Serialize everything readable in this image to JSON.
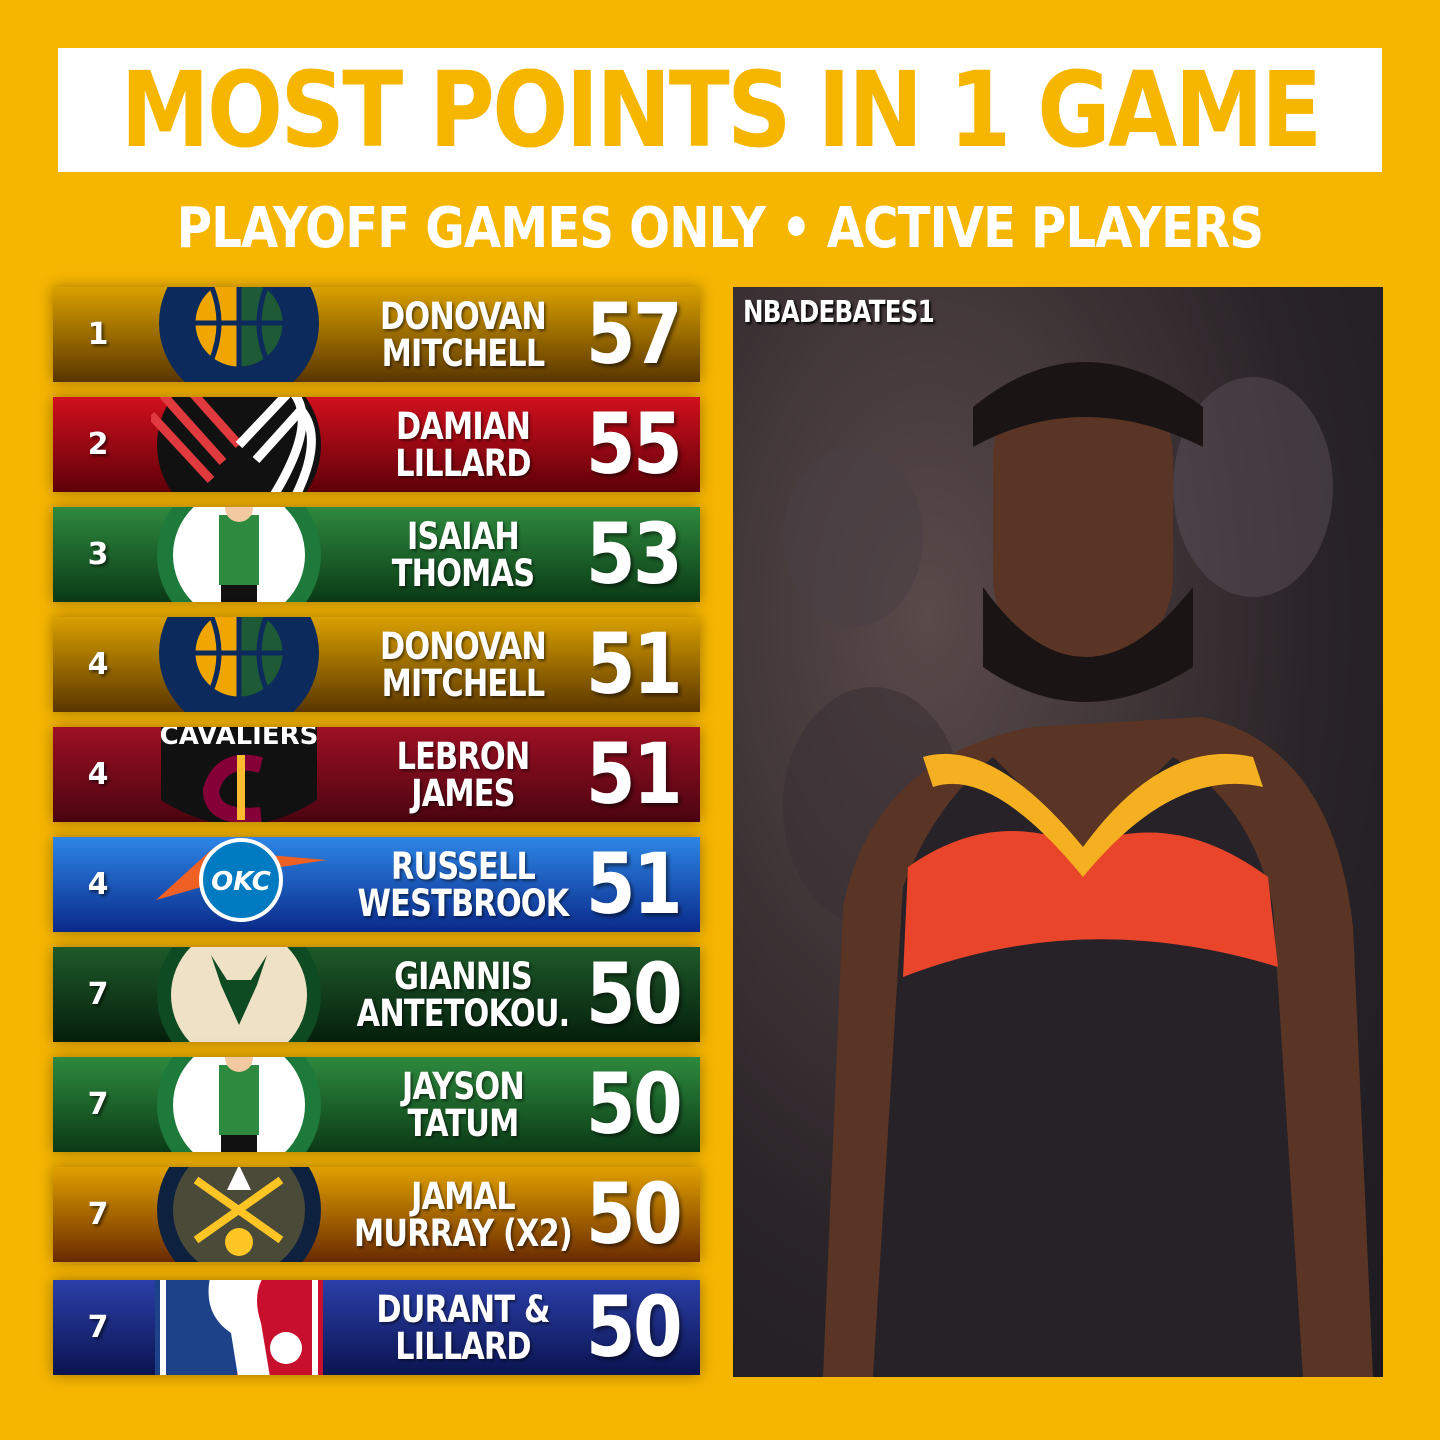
{
  "title": "MOST POINTS IN 1 GAME",
  "subtitle": "PLAYOFF GAMES ONLY • ACTIVE PLAYERS",
  "watermark": "NBADEBATES1",
  "rows": [
    {
      "rank": "1",
      "line1": "DONOVAN",
      "line2": "MITCHELL",
      "points": "57",
      "team": "jazz",
      "colors": [
        "#D9A000",
        "#5a3600"
      ]
    },
    {
      "rank": "2",
      "line1": "DAMIAN",
      "line2": "LILLARD",
      "points": "55",
      "team": "blazers",
      "colors": [
        "#D2101E",
        "#5e0008"
      ]
    },
    {
      "rank": "3",
      "line1": "ISAIAH",
      "line2": "THOMAS",
      "points": "53",
      "team": "celtics",
      "colors": [
        "#2E8A3E",
        "#0b3a16"
      ]
    },
    {
      "rank": "4",
      "line1": "DONOVAN",
      "line2": "MITCHELL",
      "points": "51",
      "team": "jazz",
      "colors": [
        "#D9A000",
        "#5a3600"
      ]
    },
    {
      "rank": "4",
      "line1": "LEBRON",
      "line2": "JAMES",
      "points": "51",
      "team": "cavaliers",
      "colors": [
        "#9E1024",
        "#4a0410"
      ]
    },
    {
      "rank": "4",
      "line1": "RUSSELL",
      "line2": "WESTBROOK",
      "points": "51",
      "team": "thunder",
      "colors": [
        "#2D86E6",
        "#0a2a8a"
      ]
    },
    {
      "rank": "7",
      "line1": "GIANNIS",
      "line2": "ANTETOKOU.",
      "points": "50",
      "team": "bucks",
      "colors": [
        "#1F5A2A",
        "#041f0c"
      ]
    },
    {
      "rank": "7",
      "line1": "JAYSON",
      "line2": "TATUM",
      "points": "50",
      "team": "celtics",
      "colors": [
        "#2E8A3E",
        "#0b3a16"
      ]
    },
    {
      "rank": "7",
      "line1": "JAMAL",
      "line2": "MURRAY (X2)",
      "points": "50",
      "team": "nuggets",
      "colors": [
        "#E0A000",
        "#6a2a00"
      ]
    },
    {
      "rank": "7",
      "line1": "DURANT &",
      "line2": "LILLARD",
      "points": "50",
      "team": "nba",
      "colors": [
        "#2A3FA8",
        "#0b1450"
      ]
    }
  ],
  "logo_text": {
    "cavaliers": "CAVALIERS",
    "thunder": "OKC"
  }
}
